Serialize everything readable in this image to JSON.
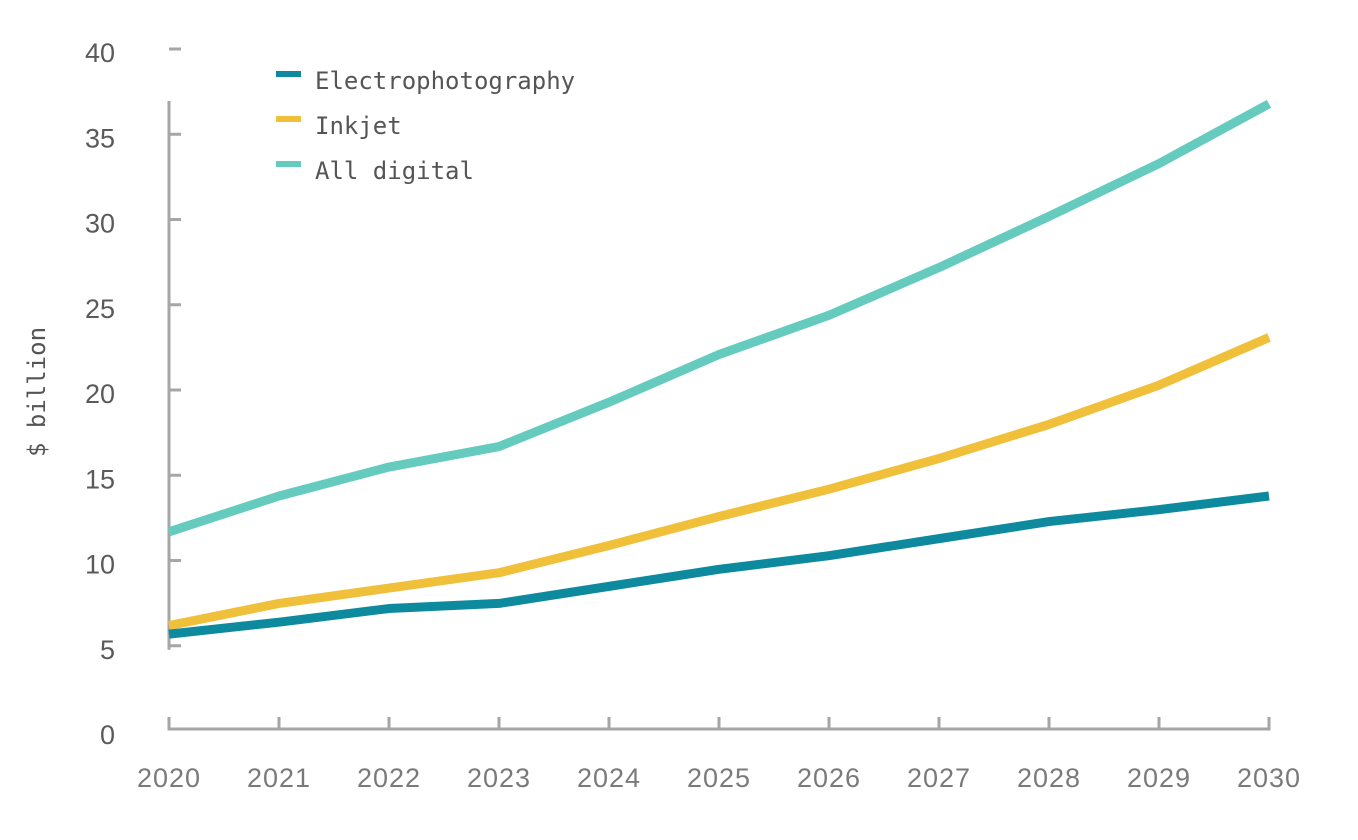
{
  "chart_data": {
    "type": "line",
    "title": "",
    "xlabel": "",
    "ylabel": "$ billion",
    "x": [
      2020,
      2021,
      2022,
      2023,
      2024,
      2025,
      2026,
      2027,
      2028,
      2029,
      2030
    ],
    "x_tick_labels": [
      "2020",
      "2021",
      "2022",
      "2023",
      "2024",
      "2025",
      "2026",
      "2027",
      "2028",
      "2029",
      "2030"
    ],
    "y_ticks": [
      0,
      5,
      10,
      15,
      20,
      25,
      30,
      35,
      40
    ],
    "y_tick_labels": [
      "0",
      "5",
      "10",
      "15",
      "20",
      "25",
      "30",
      "35",
      "40"
    ],
    "ylim": [
      0,
      40
    ],
    "xlim": [
      2020,
      2030
    ],
    "grid": false,
    "legend_position": "top-left",
    "series": [
      {
        "name": "Electrophotography",
        "color": "#0e8a9e",
        "values": [
          5.8,
          6.5,
          7.3,
          7.6,
          8.6,
          9.6,
          10.4,
          11.4,
          12.4,
          13.1,
          13.9
        ]
      },
      {
        "name": "Inkjet",
        "color": "#f0c03a",
        "values": [
          6.3,
          7.6,
          8.5,
          9.4,
          11.0,
          12.7,
          14.3,
          16.1,
          18.1,
          20.4,
          23.2
        ]
      },
      {
        "name": "All digital",
        "color": "#66cbbf",
        "values": [
          11.8,
          13.9,
          15.6,
          16.8,
          19.4,
          22.2,
          24.5,
          27.3,
          30.3,
          33.4,
          36.9
        ]
      }
    ],
    "axis_color": "#a6a6a6"
  }
}
